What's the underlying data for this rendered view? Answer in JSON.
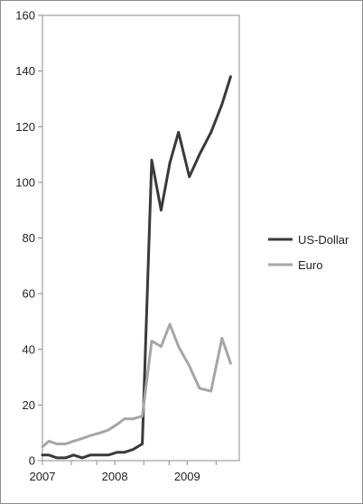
{
  "chart_data": {
    "type": "line",
    "title": "",
    "xlabel": "",
    "ylabel": "",
    "ylim": [
      0,
      160
    ],
    "yticks": [
      0,
      20,
      40,
      60,
      80,
      100,
      120,
      140,
      160
    ],
    "xlim": [
      2007.0,
      2009.72
    ],
    "xticks": [
      {
        "value": 2007.0,
        "label": "2007"
      },
      {
        "value": 2008.0,
        "label": "2008"
      },
      {
        "value": 2009.0,
        "label": "2009"
      }
    ],
    "grid": false,
    "legend": "right",
    "series": [
      {
        "name": "US-Dollar",
        "color": "#3a3a3a",
        "points": [
          [
            2007.0,
            2
          ],
          [
            2007.09,
            2
          ],
          [
            2007.2,
            1
          ],
          [
            2007.32,
            1
          ],
          [
            2007.43,
            2
          ],
          [
            2007.55,
            1
          ],
          [
            2007.66,
            2
          ],
          [
            2007.8,
            2
          ],
          [
            2007.91,
            2
          ],
          [
            2008.03,
            3
          ],
          [
            2008.13,
            3
          ],
          [
            2008.25,
            4
          ],
          [
            2008.38,
            6
          ],
          [
            2008.51,
            108
          ],
          [
            2008.64,
            90
          ],
          [
            2008.76,
            107
          ],
          [
            2008.88,
            118
          ],
          [
            2009.03,
            102
          ],
          [
            2009.17,
            110
          ],
          [
            2009.33,
            118
          ],
          [
            2009.48,
            128
          ],
          [
            2009.6,
            138
          ]
        ]
      },
      {
        "name": "Euro",
        "color": "#a6a6a6",
        "points": [
          [
            2007.0,
            5
          ],
          [
            2007.09,
            7
          ],
          [
            2007.2,
            6
          ],
          [
            2007.32,
            6
          ],
          [
            2007.43,
            7
          ],
          [
            2007.55,
            8
          ],
          [
            2007.66,
            9
          ],
          [
            2007.8,
            10
          ],
          [
            2007.91,
            11
          ],
          [
            2008.03,
            13
          ],
          [
            2008.13,
            15
          ],
          [
            2008.25,
            15
          ],
          [
            2008.38,
            16
          ],
          [
            2008.51,
            43
          ],
          [
            2008.64,
            41
          ],
          [
            2008.76,
            49
          ],
          [
            2008.88,
            41
          ],
          [
            2009.03,
            34
          ],
          [
            2009.17,
            26
          ],
          [
            2009.33,
            25
          ],
          [
            2009.48,
            44
          ],
          [
            2009.6,
            35
          ]
        ]
      }
    ]
  }
}
